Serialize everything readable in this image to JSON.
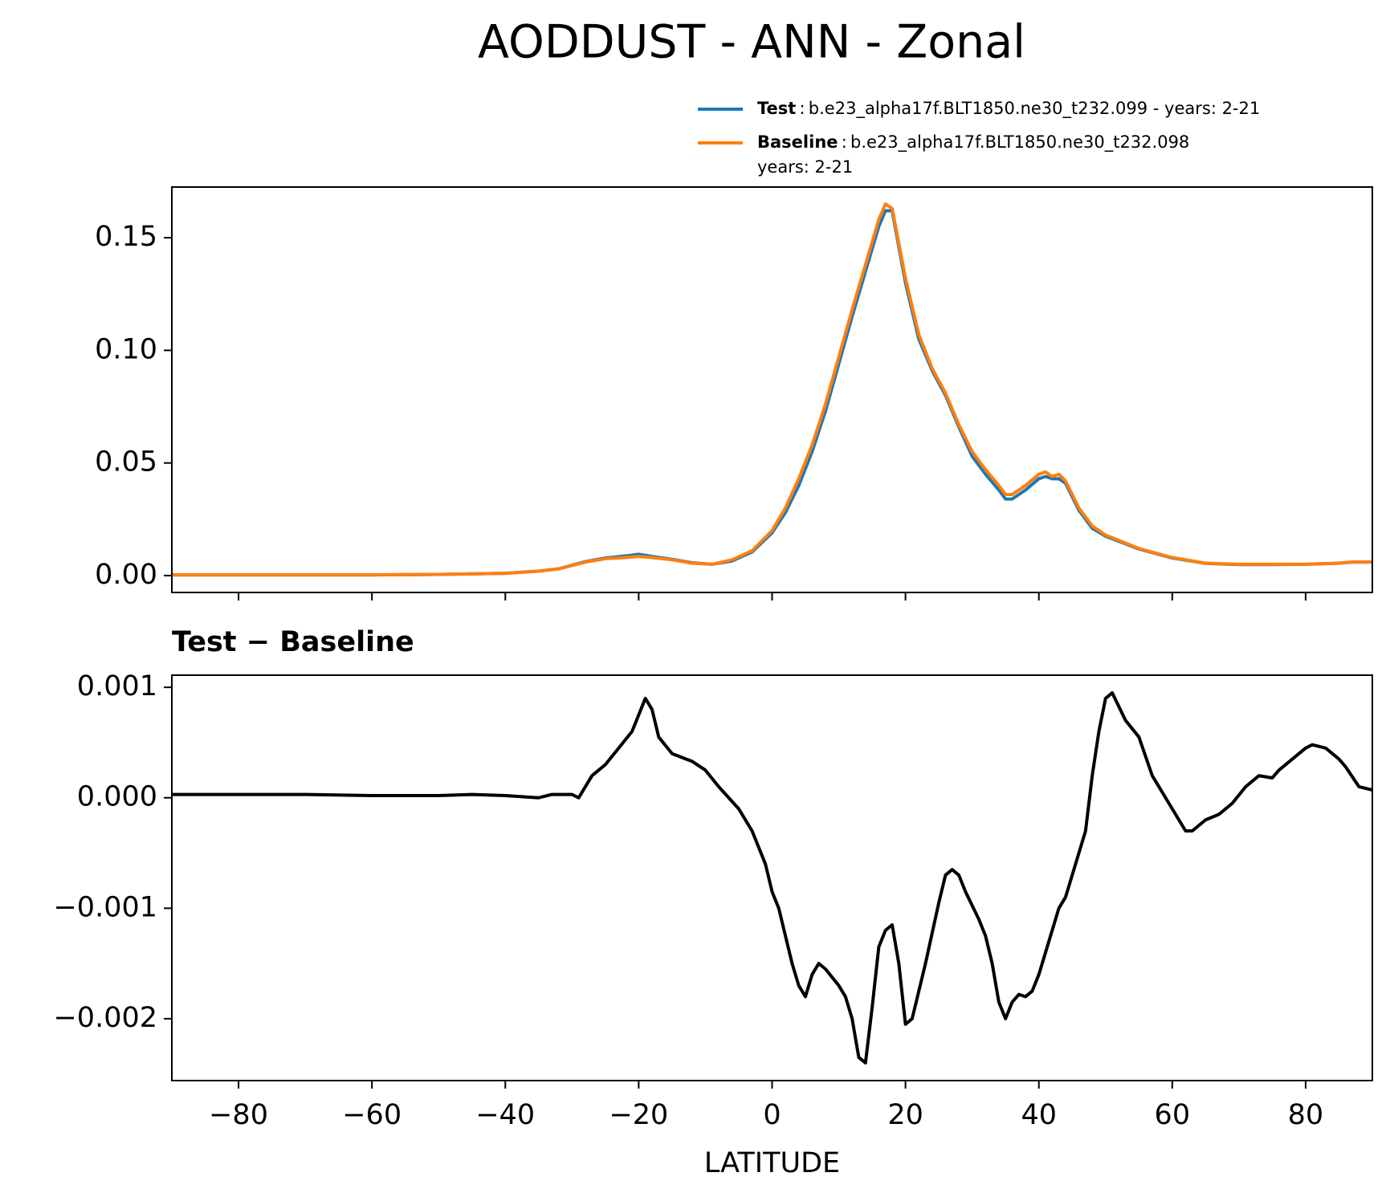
{
  "chart_data": [
    {
      "type": "line",
      "title": "AODDUST - ANN - Zonal",
      "x": [
        -90,
        -80,
        -70,
        -60,
        -50,
        -40,
        -35,
        -32,
        -28,
        -25,
        -22,
        -20,
        -18,
        -15,
        -12,
        -9,
        -6,
        -3,
        0,
        2,
        4,
        6,
        8,
        10,
        12,
        14,
        16,
        17,
        18,
        20,
        22,
        24,
        26,
        28,
        30,
        32,
        34,
        35,
        36,
        38,
        40,
        41,
        42,
        43,
        44,
        46,
        48,
        50,
        55,
        60,
        65,
        70,
        75,
        80,
        85,
        87,
        90
      ],
      "series": [
        {
          "name": "Test",
          "description": [
            "b.e23_alpha17f.BLT1850.ne30_t232.099 - years: 2-21"
          ],
          "color": "#1f77b4",
          "values": [
            0.0003,
            0.0003,
            0.0003,
            0.0003,
            0.0005,
            0.001,
            0.002,
            0.003,
            0.0062,
            0.0078,
            0.0087,
            0.0095,
            0.0085,
            0.0072,
            0.0057,
            0.005,
            0.0065,
            0.0105,
            0.019,
            0.028,
            0.04,
            0.055,
            0.073,
            0.094,
            0.115,
            0.135,
            0.155,
            0.162,
            0.162,
            0.13,
            0.105,
            0.091,
            0.08,
            0.066,
            0.053,
            0.045,
            0.038,
            0.034,
            0.034,
            0.038,
            0.043,
            0.044,
            0.043,
            0.043,
            0.041,
            0.029,
            0.021,
            0.0175,
            0.0118,
            0.0078,
            0.0054,
            0.0049,
            0.0049,
            0.005,
            0.0055,
            0.006,
            0.006
          ]
        },
        {
          "name": "Baseline",
          "description": [
            "b.e23_alpha17f.BLT1850.ne30_t232.098",
            "years: 2-21"
          ],
          "color": "#ff7f0e",
          "values": [
            0.0003,
            0.0003,
            0.0003,
            0.0003,
            0.0005,
            0.001,
            0.002,
            0.003,
            0.006,
            0.0075,
            0.008,
            0.0085,
            0.008,
            0.007,
            0.0055,
            0.005,
            0.007,
            0.011,
            0.02,
            0.03,
            0.043,
            0.058,
            0.076,
            0.097,
            0.118,
            0.138,
            0.158,
            0.165,
            0.163,
            0.132,
            0.107,
            0.092,
            0.081,
            0.067,
            0.055,
            0.047,
            0.04,
            0.036,
            0.036,
            0.04,
            0.045,
            0.046,
            0.044,
            0.045,
            0.042,
            0.03,
            0.022,
            0.018,
            0.012,
            0.008,
            0.0055,
            0.005,
            0.005,
            0.005,
            0.0055,
            0.006,
            0.006
          ]
        }
      ],
      "xlim": [
        -90,
        90
      ],
      "xticks": [
        -80,
        -60,
        -40,
        -20,
        0,
        20,
        40,
        60,
        80
      ],
      "ylim": [
        -0.0075,
        0.1725
      ],
      "yticks": [
        {
          "value": 0,
          "label": "0.00"
        },
        {
          "value": 0.05,
          "label": "0.05"
        },
        {
          "value": 0.1,
          "label": "0.10"
        },
        {
          "value": 0.15,
          "label": "0.15"
        }
      ]
    },
    {
      "type": "line",
      "subtitle": "Test − Baseline",
      "xlabel": "LATITUDE",
      "x": [
        -90,
        -80,
        -70,
        -60,
        -50,
        -45,
        -40,
        -35,
        -33,
        -30,
        -29,
        -27,
        -25,
        -23,
        -21,
        -19,
        -18,
        -17,
        -15,
        -12,
        -10,
        -8,
        -5,
        -3,
        -1,
        0,
        1,
        3,
        4,
        5,
        6,
        7,
        8,
        10,
        11,
        12,
        13,
        14,
        15,
        16,
        17,
        18,
        19,
        20,
        21,
        22,
        23,
        25,
        26,
        27,
        28,
        29,
        31,
        32,
        33,
        34,
        35,
        36,
        37,
        38,
        39,
        40,
        41,
        43,
        44,
        45,
        46,
        47,
        48,
        49,
        50,
        51,
        53,
        55,
        57,
        60,
        62,
        63,
        65,
        67,
        69,
        71,
        73,
        75,
        76,
        78,
        80,
        81,
        83,
        85,
        86,
        88,
        90
      ],
      "series": [
        {
          "name": "Test − Baseline",
          "color": "#000000",
          "values": [
            3e-05,
            3e-05,
            3e-05,
            2e-05,
            2e-05,
            3e-05,
            2e-05,
            0.0,
            3e-05,
            3e-05,
            0.0,
            0.0002,
            0.0003,
            0.00045,
            0.0006,
            0.0009,
            0.0008,
            0.00055,
            0.0004,
            0.00033,
            0.00025,
            0.0001,
            -0.0001,
            -0.0003,
            -0.0006,
            -0.00085,
            -0.001,
            -0.0015,
            -0.0017,
            -0.0018,
            -0.0016,
            -0.0015,
            -0.00155,
            -0.0017,
            -0.0018,
            -0.002,
            -0.00235,
            -0.0024,
            -0.0019,
            -0.00135,
            -0.0012,
            -0.00115,
            -0.0015,
            -0.00205,
            -0.002,
            -0.00175,
            -0.0015,
            -0.00095,
            -0.0007,
            -0.00065,
            -0.0007,
            -0.00085,
            -0.0011,
            -0.00125,
            -0.0015,
            -0.00185,
            -0.002,
            -0.00185,
            -0.00178,
            -0.0018,
            -0.00175,
            -0.0016,
            -0.0014,
            -0.001,
            -0.0009,
            -0.0007,
            -0.0005,
            -0.0003,
            0.0002,
            0.0006,
            0.0009,
            0.00095,
            0.0007,
            0.00055,
            0.0002,
            -0.0001,
            -0.0003,
            -0.0003,
            -0.0002,
            -0.00015,
            -5e-05,
            0.0001,
            0.0002,
            0.00018,
            0.00025,
            0.00035,
            0.00045,
            0.00048,
            0.00045,
            0.00035,
            0.00028,
            0.0001,
            7e-05
          ]
        }
      ],
      "xlim": [
        -90,
        90
      ],
      "xticks": [
        {
          "value": -80,
          "label": "−80"
        },
        {
          "value": -60,
          "label": "−60"
        },
        {
          "value": -40,
          "label": "−40"
        },
        {
          "value": -20,
          "label": "−20"
        },
        0,
        20,
        40,
        60,
        80
      ],
      "ylim": [
        -0.00256,
        0.00111
      ],
      "yticks": [
        {
          "value": -0.002,
          "label": "−0.002"
        },
        {
          "value": -0.001,
          "label": "−0.001"
        },
        {
          "value": 0,
          "label": "0.000"
        },
        {
          "value": 0.001,
          "label": "0.001"
        }
      ]
    }
  ]
}
